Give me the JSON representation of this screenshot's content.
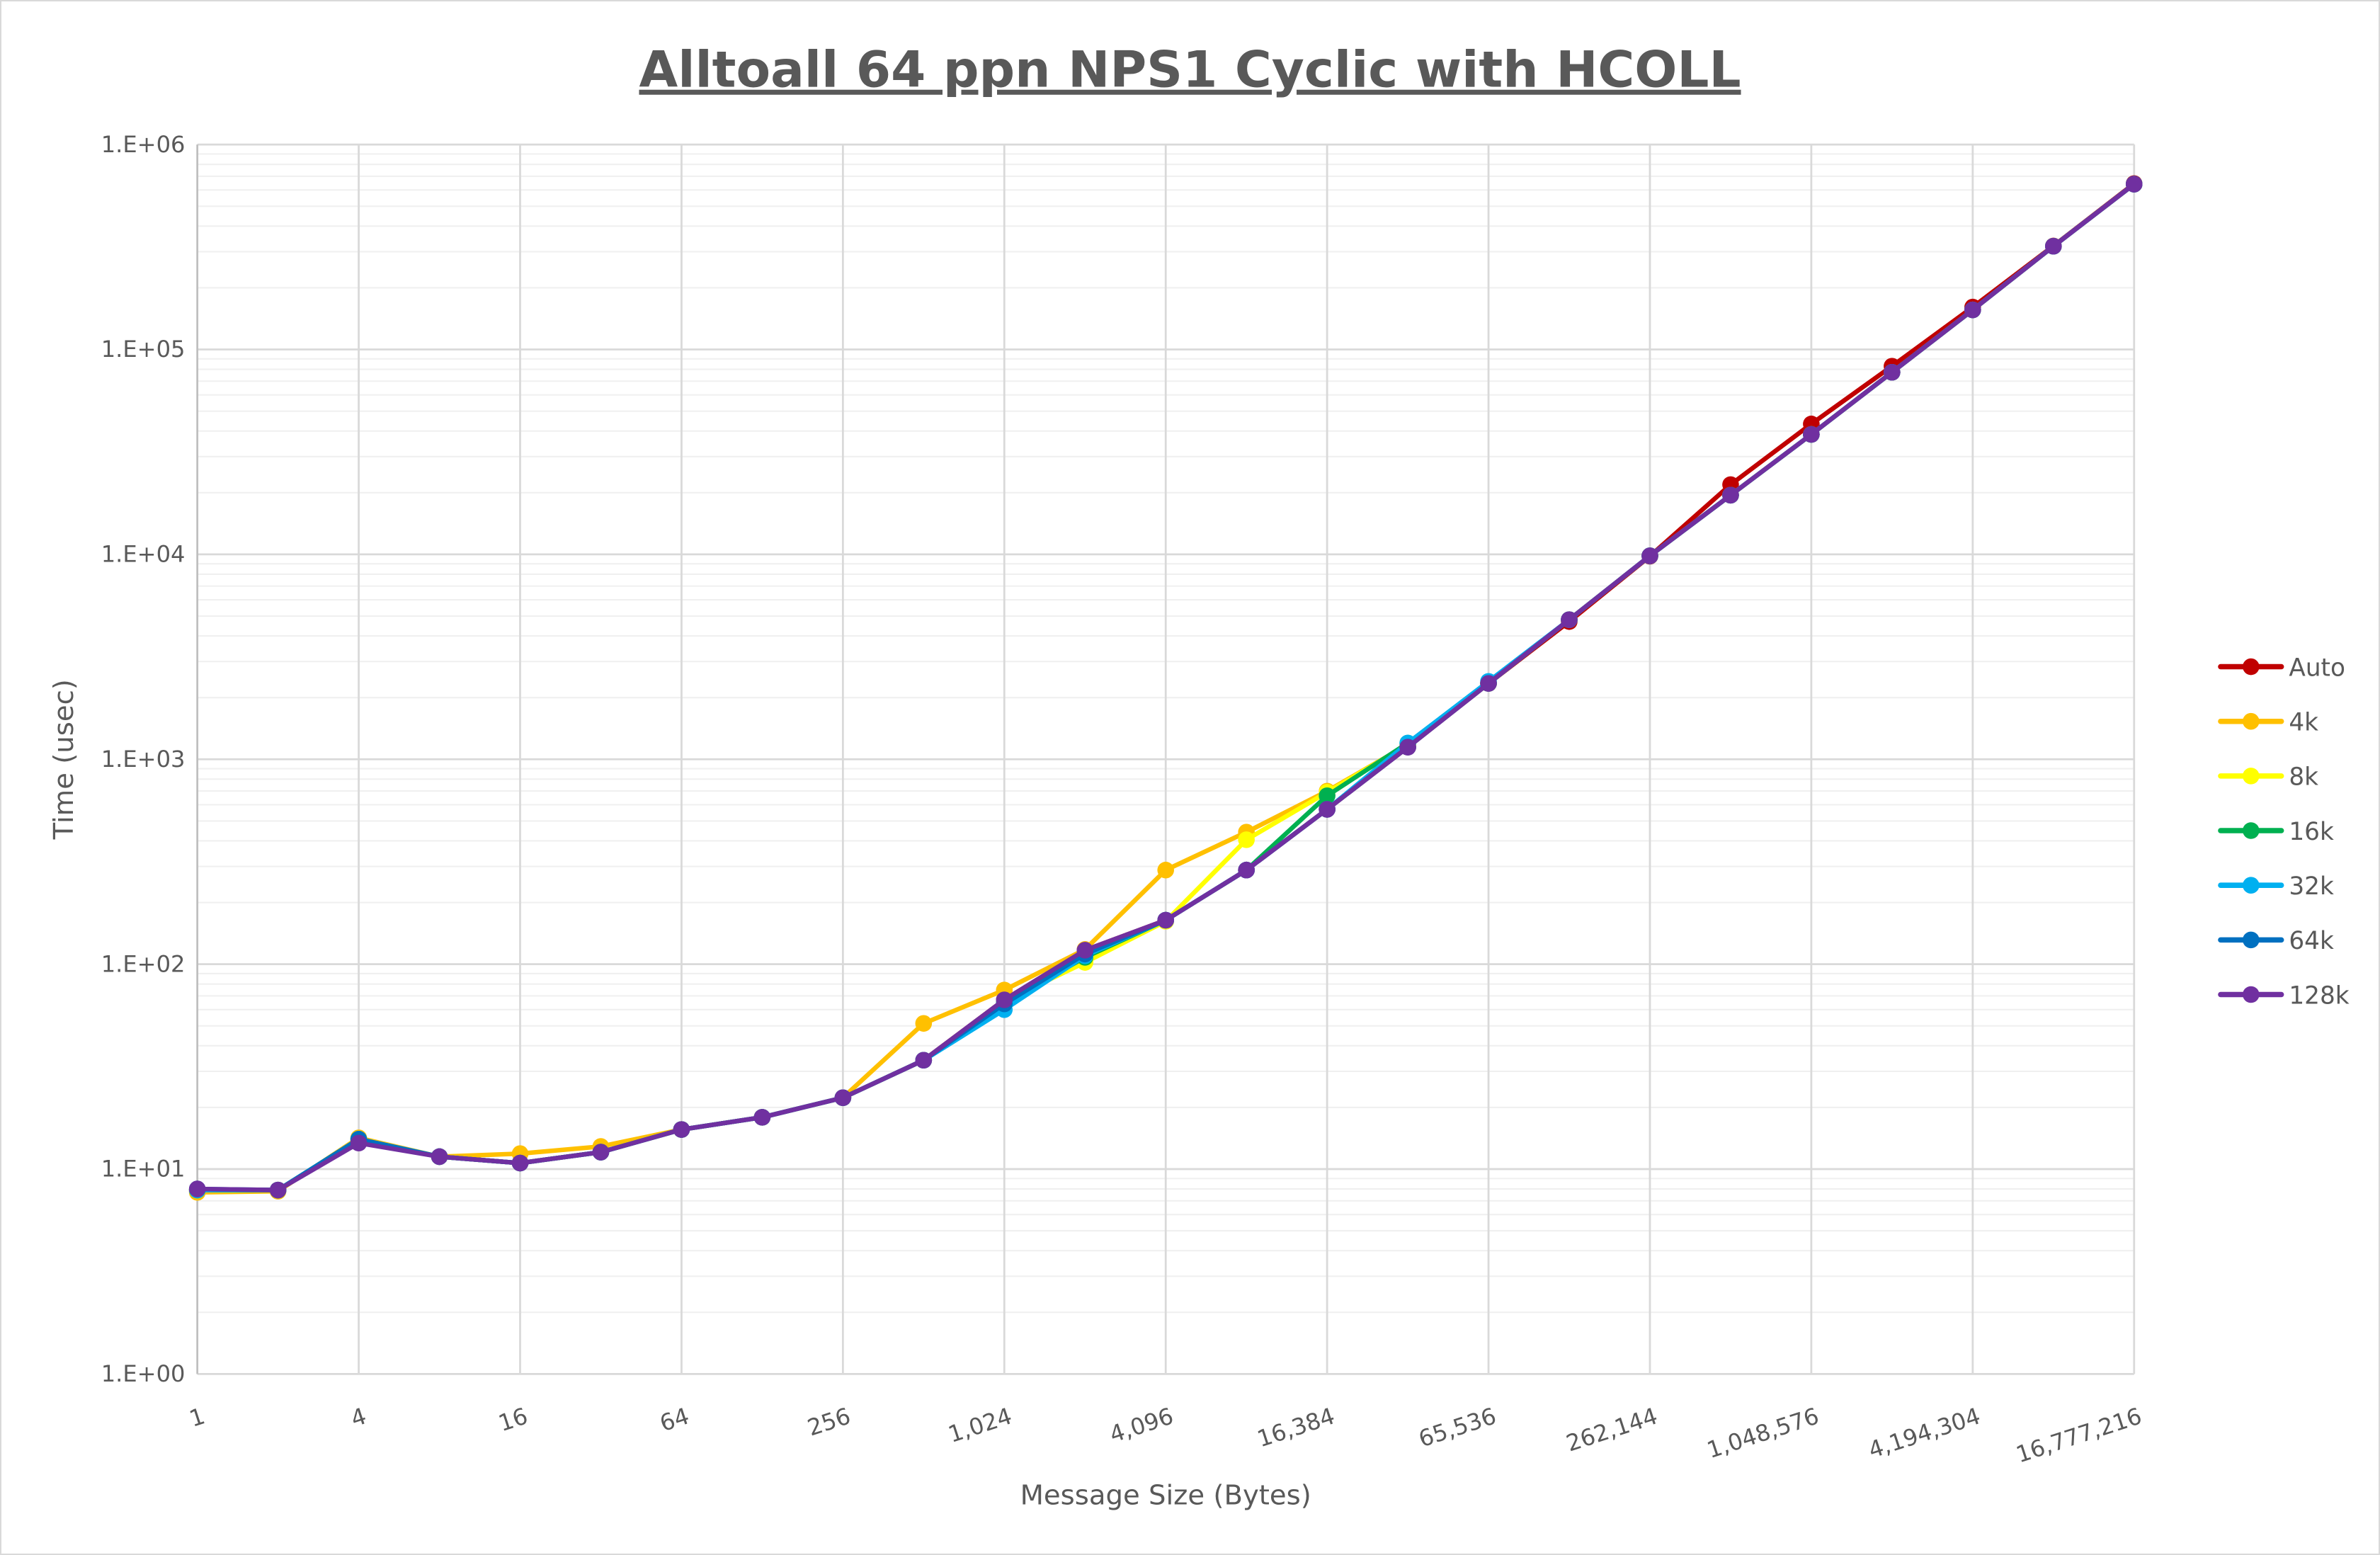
{
  "chart_data": {
    "type": "line",
    "title": "Alltoall 64 ppn NPS1 Cyclic with HCOLL",
    "xlabel": "Message Size (Bytes)",
    "ylabel": "Time (usec)",
    "x_scale": "log2",
    "y_scale": "log10",
    "ylim": [
      1,
      1000000
    ],
    "grid": true,
    "legend_position": "right",
    "x": [
      1,
      2,
      4,
      8,
      16,
      32,
      64,
      128,
      256,
      512,
      1024,
      2048,
      4096,
      8192,
      16384,
      32768,
      65536,
      131072,
      262144,
      524288,
      1048576,
      2097152,
      4194304,
      8388608,
      16777216
    ],
    "x_tick_labels": [
      "1",
      "4",
      "16",
      "64",
      "256",
      "1,024",
      "4,096",
      "16,384",
      "65,536",
      "262,144",
      "1,048,576",
      "4,194,304",
      "16,777,216"
    ],
    "y_tick_labels": [
      "1.E+00",
      "1.E+01",
      "1.E+02",
      "1.E+03",
      "1.E+04",
      "1.E+05",
      "1.E+06"
    ],
    "series": [
      {
        "name": "Auto",
        "color": "#C00000",
        "values": [
          7.8,
          7.9,
          13.6,
          11.5,
          10.7,
          12.1,
          15.6,
          17.9,
          22.3,
          34,
          67,
          117,
          164,
          288,
          570,
          1146,
          2345,
          4700,
          9800,
          21900,
          43300,
          82900,
          161000,
          320000,
          645000
        ]
      },
      {
        "name": "4k",
        "color": "#FFC000",
        "values": [
          7.7,
          7.8,
          14.2,
          11.5,
          11.9,
          12.9,
          15.6,
          17.9,
          22.3,
          51.4,
          74.8,
          118,
          288,
          441,
          699,
          1180,
          2345,
          4800,
          9840,
          19450,
          38500,
          77400,
          156000,
          319000,
          641000
        ]
      },
      {
        "name": "8k",
        "color": "#FFFF00",
        "values": [
          7.9,
          7.9,
          14.0,
          11.5,
          10.7,
          12.1,
          15.6,
          17.9,
          22.3,
          34,
          66,
          102,
          162,
          405,
          690,
          1180,
          2345,
          4800,
          9840,
          19450,
          38500,
          77400,
          156000,
          319000,
          641000
        ]
      },
      {
        "name": "16k",
        "color": "#00B050",
        "values": [
          7.9,
          7.9,
          13.8,
          11.5,
          10.7,
          12.1,
          15.6,
          17.9,
          22.3,
          34,
          65,
          108,
          164,
          288,
          664,
          1200,
          2345,
          4800,
          9840,
          19450,
          38500,
          77400,
          156000,
          319000,
          641000
        ]
      },
      {
        "name": "32k",
        "color": "#00B0F0",
        "values": [
          7.9,
          7.9,
          14.0,
          11.5,
          10.7,
          12.1,
          15.6,
          17.9,
          22.3,
          34,
          60,
          110,
          164,
          288,
          570,
          1200,
          2400,
          4800,
          9840,
          19450,
          38500,
          77400,
          156000,
          319000,
          641000
        ]
      },
      {
        "name": "64k",
        "color": "#0070C0",
        "values": [
          8.0,
          7.9,
          14.0,
          11.5,
          10.7,
          12.1,
          15.6,
          17.9,
          22.3,
          34,
          64,
          112,
          164,
          288,
          570,
          1146,
          2345,
          4800,
          9840,
          19450,
          38500,
          77400,
          156000,
          319000,
          641000
        ]
      },
      {
        "name": "128k",
        "color": "#7030A0",
        "values": [
          8.0,
          7.9,
          13.4,
          11.5,
          10.7,
          12.1,
          15.6,
          17.9,
          22.3,
          34,
          67,
          117,
          164,
          288,
          570,
          1146,
          2345,
          4800,
          9840,
          19450,
          38500,
          77400,
          156000,
          319000,
          641000
        ]
      }
    ]
  }
}
